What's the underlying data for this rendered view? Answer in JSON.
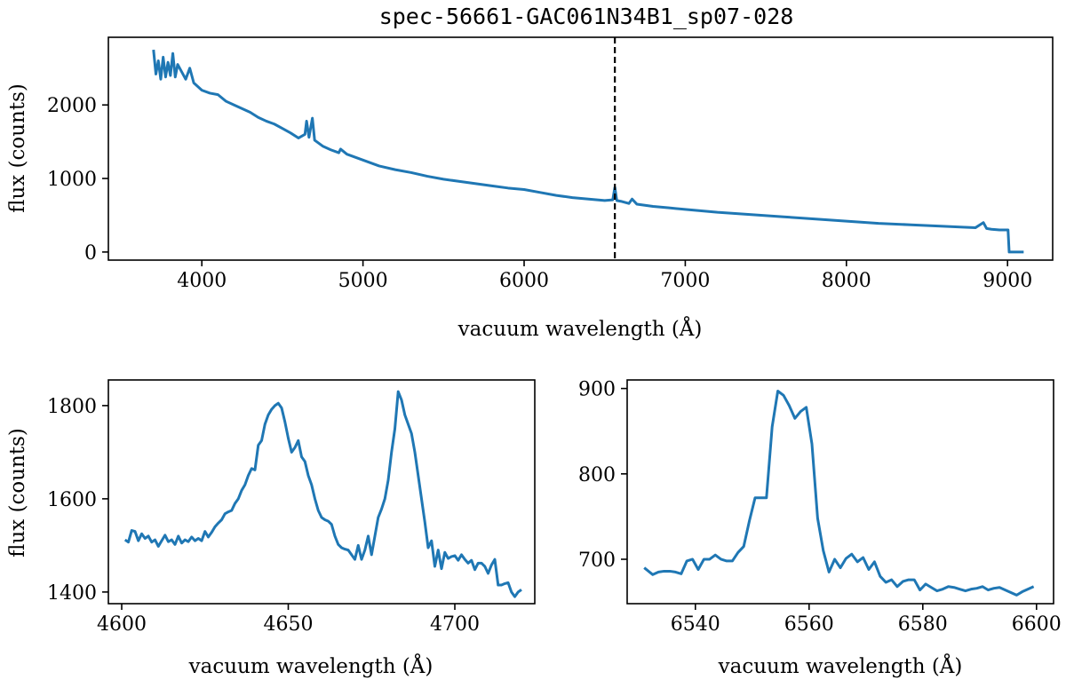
{
  "chart_data": [
    {
      "type": "line",
      "id": "overview",
      "title": "spec-56661-GAC061N34B1_sp07-028",
      "xlabel": "vacuum wavelength (Å)",
      "ylabel": "flux (counts)",
      "xlim": [
        3420,
        9280
      ],
      "ylim": [
        -110,
        2920
      ],
      "xticks": [
        4000,
        5000,
        6000,
        7000,
        8000,
        9000
      ],
      "yticks": [
        0,
        1000,
        2000
      ],
      "line_color": "#1f77b4",
      "vline": {
        "x": 6563,
        "style": "dashed",
        "color": "#000000"
      },
      "series": [
        {
          "name": "spectrum",
          "x": [
            3700,
            3715,
            3730,
            3745,
            3760,
            3775,
            3790,
            3805,
            3820,
            3835,
            3850,
            3875,
            3900,
            3925,
            3950,
            3975,
            4000,
            4050,
            4100,
            4150,
            4200,
            4250,
            4300,
            4350,
            4400,
            4450,
            4500,
            4550,
            4600,
            4640,
            4650,
            4665,
            4686,
            4700,
            4750,
            4800,
            4850,
            4861,
            4900,
            5000,
            5100,
            5200,
            5300,
            5400,
            5500,
            5600,
            5700,
            5800,
            5900,
            6000,
            6100,
            6200,
            6300,
            6400,
            6500,
            6550,
            6563,
            6575,
            6600,
            6650,
            6670,
            6700,
            6800,
            6900,
            7000,
            7200,
            7400,
            7600,
            7800,
            8000,
            8200,
            8400,
            8600,
            8800,
            8850,
            8870,
            8900,
            8950,
            9000,
            9003,
            9010,
            9100
          ],
          "y": [
            2750,
            2420,
            2600,
            2350,
            2650,
            2380,
            2580,
            2400,
            2700,
            2380,
            2550,
            2450,
            2350,
            2500,
            2300,
            2250,
            2200,
            2160,
            2140,
            2050,
            2000,
            1950,
            1900,
            1830,
            1780,
            1740,
            1680,
            1620,
            1550,
            1600,
            1780,
            1560,
            1820,
            1520,
            1440,
            1390,
            1350,
            1400,
            1330,
            1250,
            1170,
            1120,
            1080,
            1030,
            990,
            960,
            930,
            900,
            870,
            850,
            810,
            770,
            740,
            720,
            700,
            710,
            880,
            700,
            690,
            660,
            720,
            650,
            620,
            600,
            580,
            540,
            510,
            480,
            450,
            420,
            390,
            370,
            350,
            330,
            400,
            320,
            310,
            300,
            300,
            300,
            0,
            0
          ]
        }
      ]
    },
    {
      "type": "line",
      "id": "heii-zoom",
      "title": "",
      "xlabel": "vacuum wavelength (Å)",
      "ylabel": "flux (counts)",
      "xlim": [
        4596,
        4724
      ],
      "ylim": [
        1375,
        1855
      ],
      "xticks": [
        4600,
        4650,
        4700
      ],
      "yticks": [
        1400,
        1600,
        1800
      ],
      "line_color": "#1f77b4",
      "series": [
        {
          "name": "spectrum",
          "x": [
            4601,
            4602,
            4603,
            4604,
            4605,
            4606,
            4607,
            4608,
            4609,
            4610,
            4611,
            4612,
            4613,
            4614,
            4615,
            4616,
            4617,
            4618,
            4619,
            4620,
            4621,
            4622,
            4623,
            4624,
            4625,
            4626,
            4627,
            4628,
            4629,
            4630,
            4631,
            4632,
            4633,
            4634,
            4635,
            4636,
            4637,
            4638,
            4639,
            4640,
            4641,
            4642,
            4643,
            4644,
            4645,
            4646,
            4647,
            4648,
            4649,
            4650,
            4651,
            4652,
            4653,
            4654,
            4655,
            4656,
            4657,
            4658,
            4659,
            4660,
            4661,
            4662,
            4663,
            4664,
            4665,
            4666,
            4667,
            4668,
            4669,
            4670,
            4671,
            4672,
            4673,
            4674,
            4675,
            4676,
            4677,
            4678,
            4679,
            4680,
            4681,
            4682,
            4683,
            4684,
            4685,
            4686,
            4687,
            4688,
            4689,
            4690,
            4691,
            4692,
            4693,
            4694,
            4695,
            4696,
            4697,
            4698,
            4699,
            4700,
            4701,
            4702,
            4703,
            4704,
            4705,
            4706,
            4707,
            4708,
            4709,
            4710,
            4711,
            4712,
            4713,
            4714,
            4715,
            4716,
            4717,
            4718,
            4719,
            4720
          ],
          "y": [
            1512,
            1507,
            1532,
            1530,
            1510,
            1525,
            1515,
            1520,
            1507,
            1512,
            1498,
            1510,
            1522,
            1508,
            1512,
            1502,
            1520,
            1505,
            1512,
            1508,
            1518,
            1510,
            1515,
            1510,
            1530,
            1518,
            1528,
            1540,
            1548,
            1555,
            1568,
            1572,
            1575,
            1590,
            1600,
            1618,
            1630,
            1650,
            1665,
            1662,
            1715,
            1725,
            1760,
            1780,
            1792,
            1800,
            1805,
            1795,
            1765,
            1730,
            1700,
            1710,
            1725,
            1690,
            1680,
            1650,
            1630,
            1600,
            1575,
            1560,
            1555,
            1552,
            1545,
            1520,
            1502,
            1495,
            1492,
            1490,
            1480,
            1470,
            1500,
            1470,
            1490,
            1520,
            1480,
            1520,
            1560,
            1578,
            1600,
            1640,
            1700,
            1750,
            1830,
            1812,
            1780,
            1760,
            1740,
            1700,
            1650,
            1600,
            1550,
            1495,
            1510,
            1455,
            1490,
            1450,
            1485,
            1472,
            1476,
            1478,
            1468,
            1480,
            1470,
            1462,
            1468,
            1448,
            1462,
            1462,
            1455,
            1440,
            1458,
            1470,
            1415,
            1415,
            1418,
            1420,
            1400,
            1390,
            1400,
            1405
          ]
        }
      ]
    },
    {
      "type": "line",
      "id": "halpha-zoom",
      "title": "",
      "xlabel": "vacuum wavelength (Å)",
      "ylabel": "",
      "xlim": [
        6528,
        6603
      ],
      "ylim": [
        648,
        910
      ],
      "xticks": [
        6540,
        6560,
        6580,
        6600
      ],
      "yticks": [
        700,
        800,
        900
      ],
      "line_color": "#1f77b4",
      "series": [
        {
          "name": "spectrum",
          "x": [
            6531,
            6532.5,
            6533.5,
            6534.5,
            6535.5,
            6536.5,
            6537.5,
            6538.5,
            6539.5,
            6540.5,
            6541.5,
            6542.5,
            6543.5,
            6544.5,
            6545.5,
            6546.5,
            6547.5,
            6548.5,
            6549.5,
            6550.5,
            6551.5,
            6552.5,
            6553.5,
            6554.5,
            6555.5,
            6556.5,
            6557.5,
            6558.5,
            6559.5,
            6560.5,
            6561.5,
            6562.5,
            6563.5,
            6564.5,
            6565.5,
            6566.5,
            6567.5,
            6568.5,
            6569.5,
            6570.5,
            6571.5,
            6572.5,
            6573.5,
            6574.5,
            6575.5,
            6576.5,
            6577.5,
            6578.5,
            6579.5,
            6580.5,
            6581.5,
            6582.5,
            6583.5,
            6584.5,
            6585.5,
            6586.5,
            6587.5,
            6588.5,
            6589.5,
            6590.5,
            6591.5,
            6592.5,
            6593.5,
            6594.5,
            6595.5,
            6596.5,
            6597.5,
            6598.5,
            6599.5
          ],
          "y": [
            690,
            682,
            685,
            686,
            686,
            685,
            683,
            698,
            700,
            688,
            700,
            700,
            705,
            700,
            698,
            698,
            708,
            715,
            745,
            772,
            772,
            772,
            855,
            897,
            892,
            880,
            865,
            873,
            878,
            835,
            748,
            710,
            685,
            700,
            690,
            701,
            706,
            697,
            702,
            688,
            697,
            680,
            673,
            676,
            668,
            674,
            676,
            676,
            664,
            671,
            667,
            663,
            665,
            668,
            667,
            665,
            663,
            665,
            666,
            668,
            664,
            666,
            667,
            664,
            661,
            658,
            662,
            665,
            668
          ]
        }
      ]
    }
  ]
}
